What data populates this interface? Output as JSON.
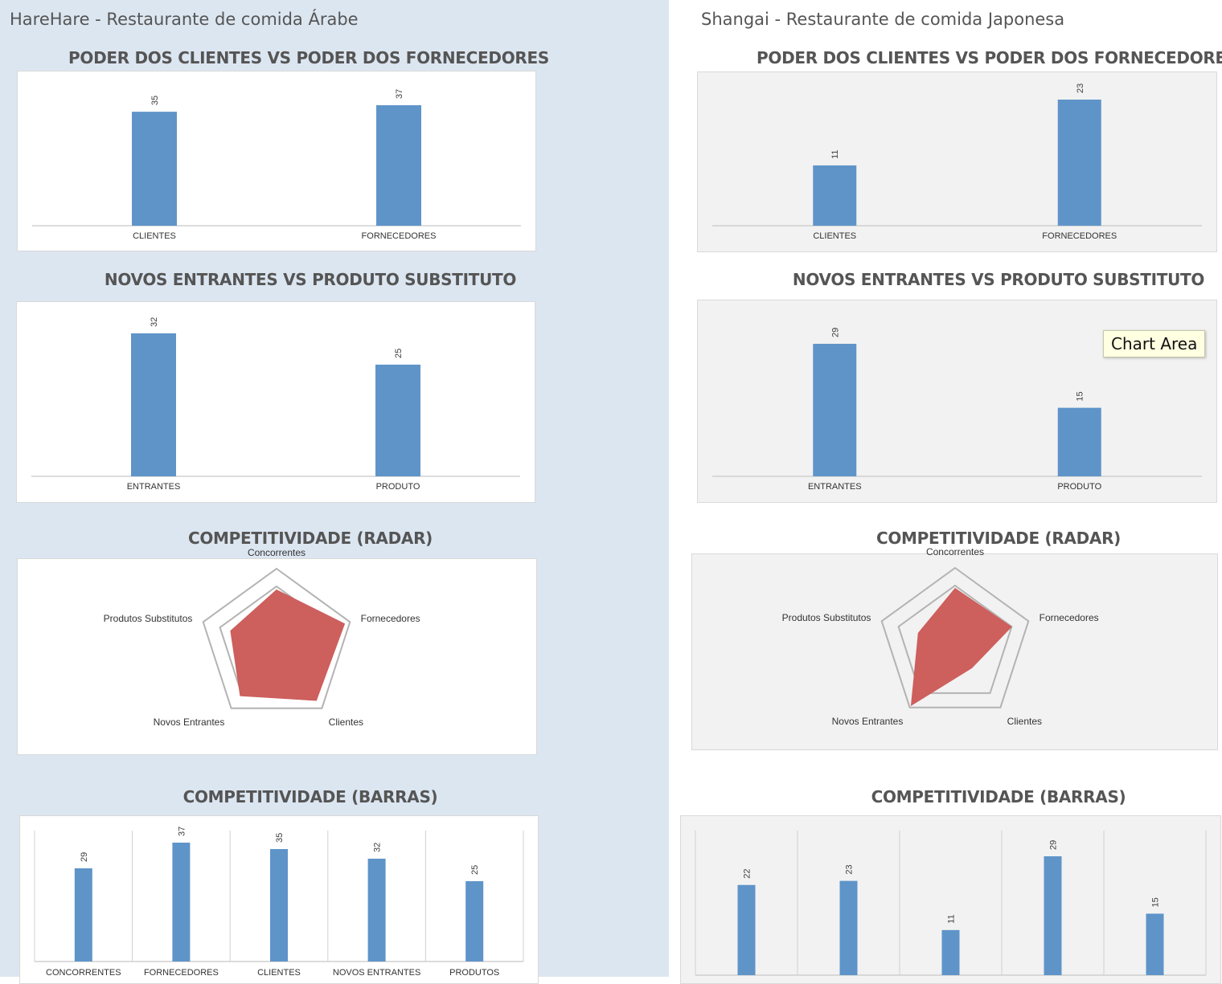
{
  "colors": {
    "bar": "#5f94c9",
    "radar_fill": "#cd5f5c",
    "radar_grid": "#b3b3b3",
    "axis": "#d0d0d0",
    "label": "#333333"
  },
  "panels": [
    {
      "title": "HareHare - Restaurante de comida Árabe",
      "charts": [
        {
          "id": "left-poder",
          "chart_data": {
            "type": "bar",
            "title": "PODER DOS CLIENTES VS PODER DOS FORNECEDORES",
            "categories": [
              "CLIENTES",
              "FORNECEDORES"
            ],
            "values": [
              35,
              37
            ],
            "data_labels": [
              "35",
              "37"
            ]
          }
        },
        {
          "id": "left-novos",
          "chart_data": {
            "type": "bar",
            "title": "NOVOS ENTRANTES VS PRODUTO SUBSTITUTO",
            "categories": [
              "ENTRANTES",
              "PRODUTO"
            ],
            "values": [
              32,
              25
            ],
            "data_labels": [
              "32",
              "25"
            ]
          }
        },
        {
          "id": "left-radar",
          "chart_data": {
            "type": "radar",
            "title": "COMPETITIVIDADE (RADAR)",
            "axes": [
              "Concorrentes",
              "Fornecedores",
              "Clientes",
              "Novos Entrantes",
              "Produtos Substitutos"
            ],
            "values": [
              29,
              37,
              35,
              32,
              25
            ],
            "rmax": 40
          }
        },
        {
          "id": "left-barras",
          "chart_data": {
            "type": "bar",
            "title": "COMPETITIVIDADE (BARRAS)",
            "categories": [
              "CONCORRENTES",
              "FORNECEDORES",
              "CLIENTES",
              "NOVOS ENTRANTES",
              "PRODUTOS"
            ],
            "values": [
              29,
              37,
              35,
              32,
              25
            ],
            "data_labels": [
              "29",
              "37",
              "35",
              "32",
              "25"
            ]
          }
        }
      ]
    },
    {
      "title": "Shangai - Restaurante de comida Japonesa",
      "charts": [
        {
          "id": "right-poder",
          "chart_data": {
            "type": "bar",
            "title": "PODER DOS CLIENTES VS PODER DOS FORNECEDORES",
            "categories": [
              "CLIENTES",
              "FORNECEDORES"
            ],
            "values": [
              11,
              23
            ],
            "data_labels": [
              "11",
              "23"
            ]
          }
        },
        {
          "id": "right-novos",
          "chart_data": {
            "type": "bar",
            "title": "NOVOS ENTRANTES VS PRODUTO SUBSTITUTO",
            "categories": [
              "ENTRANTES",
              "PRODUTO"
            ],
            "values": [
              29,
              15
            ],
            "data_labels": [
              "29",
              "15"
            ]
          }
        },
        {
          "id": "right-radar",
          "chart_data": {
            "type": "radar",
            "title": "COMPETITIVIDADE (RADAR)",
            "axes": [
              "Concorrentes",
              "Fornecedores",
              "Clientes",
              "Novos Entrantes",
              "Produtos Substitutos"
            ],
            "values": [
              22,
              23,
              11,
              29,
              15
            ],
            "rmax": 30
          }
        },
        {
          "id": "right-barras",
          "chart_data": {
            "type": "bar",
            "title": "COMPETITIVIDADE (BARRAS)",
            "categories": [
              "",
              "",
              "",
              "",
              ""
            ],
            "values": [
              22,
              23,
              11,
              29,
              15
            ],
            "data_labels": [
              "22",
              "23",
              "11",
              "29",
              "15"
            ]
          }
        }
      ]
    }
  ],
  "tooltip": {
    "text": "Chart Area"
  }
}
